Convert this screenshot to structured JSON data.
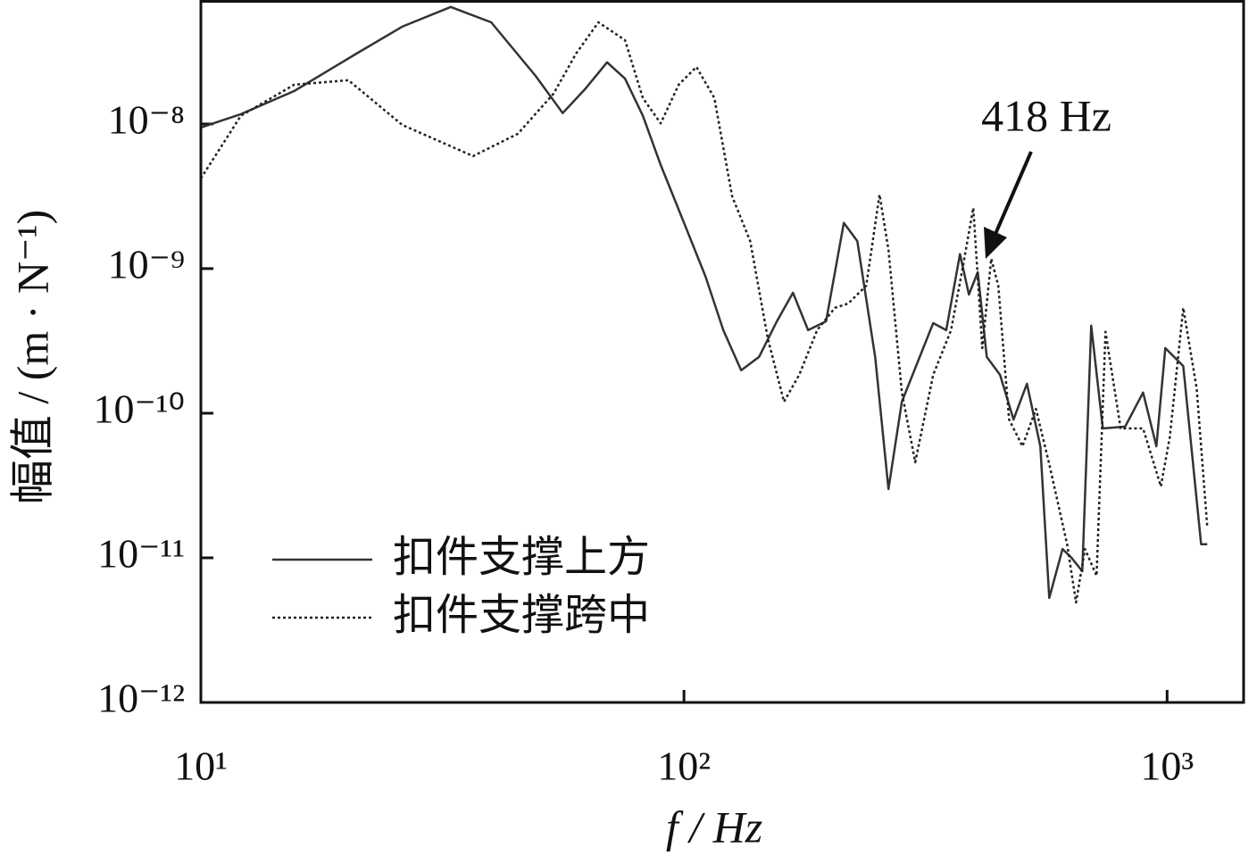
{
  "chart_data": {
    "type": "line",
    "xlabel": "f / Hz",
    "ylabel": "幅值 / (m · N⁻¹)",
    "xscale": "log",
    "yscale": "log",
    "xlim": [
      10,
      1440
    ],
    "ylim": [
      1e-12,
      7.2e-08
    ],
    "xticks": [
      {
        "value": 10,
        "label": "10¹"
      },
      {
        "value": 100,
        "label": "10²"
      },
      {
        "value": 1000,
        "label": "10³"
      }
    ],
    "yticks": [
      {
        "value": 1e-12,
        "label": "10⁻¹²"
      },
      {
        "value": 1e-11,
        "label": "10⁻¹¹"
      },
      {
        "value": 1e-10,
        "label": "10⁻¹⁰"
      },
      {
        "value": 1e-09,
        "label": "10⁻⁹"
      },
      {
        "value": 1e-08,
        "label": "10⁻⁸"
      }
    ],
    "legend": "lower left",
    "annotation": "418 Hz",
    "series": [
      {
        "name": "扣件支撑上方",
        "color": "#333333",
        "linestyle": "solid",
        "x": [
          10,
          12.1,
          15.6,
          21.0,
          26.1,
          32.9,
          39.9,
          49.3,
          56.1,
          62.4,
          69.3,
          75.5,
          82.2,
          89.5,
          100,
          110.8,
          120.6,
          131.3,
          143,
          155.7,
          168.1,
          180.7,
          196.8,
          214.2,
          228.4,
          248.7,
          265,
          282.5,
          307.6,
          328,
          349,
          372.6,
          388.8,
          405.6,
          423.4,
          451,
          481,
          512.7,
          546.5,
          570.3,
          607.7,
          634.3,
          667.5,
          696.5,
          736,
          818.8,
          891.8,
          950.2,
          991.5,
          1080,
          1176,
          1211
        ],
        "values": [
          9.45e-09,
          1.17e-08,
          1.69e-08,
          3.07e-08,
          4.71e-08,
          6.44e-08,
          5.05e-08,
          2.15e-08,
          1.19e-08,
          1.74e-08,
          2.67e-08,
          2.06e-08,
          1.14e-08,
          5.2e-09,
          2.07e-09,
          8.8e-10,
          3.75e-10,
          1.98e-10,
          2.45e-10,
          4.32e-10,
          6.81e-10,
          3.75e-10,
          4.32e-10,
          2.07e-09,
          1.55e-09,
          2.45e-10,
          2.99e-11,
          1.2e-10,
          2.45e-10,
          4.2e-10,
          3.75e-10,
          1.26e-09,
          6.62e-10,
          9.45e-10,
          2.45e-10,
          1.84e-10,
          9.05e-11,
          1.6e-10,
          5.91e-11,
          5.28e-12,
          1.15e-11,
          1e-11,
          8.08e-12,
          4.03e-10,
          7.85e-11,
          8.08e-11,
          1.39e-10,
          5.91e-11,
          2.82e-10,
          2.12e-10,
          1.24e-11,
          1.24e-11
        ]
      },
      {
        "name": "扣件支撑跨中",
        "color": "#222222",
        "linestyle": "dotted",
        "x": [
          10,
          12.1,
          15.6,
          20.2,
          26.1,
          36.6,
          45.3,
          53.7,
          59.8,
          66.5,
          75.5,
          82.2,
          89.5,
          97.5,
          106.1,
          115.6,
          125.8,
          137.1,
          149.2,
          161.1,
          173.2,
          188.6,
          205.3,
          218.8,
          238.4,
          254.0,
          265,
          282.5,
          301.1,
          328,
          357.1,
          377.4,
          397.1,
          414.5,
          432.5,
          447.3,
          470.8,
          501.9,
          535.2,
          570.3,
          620.9,
          647.9,
          676.1,
          714.5,
          745.6,
          801.6,
          891.8,
          970.7,
          1013,
          1080,
          1151,
          1211
        ],
        "values": [
          4.2e-09,
          1.14e-08,
          1.87e-08,
          2.01e-08,
          9.86e-09,
          6e-09,
          8.55e-09,
          1.62e-08,
          3.07e-08,
          5.05e-08,
          3.8e-08,
          1.51e-08,
          1.01e-08,
          1.87e-08,
          2.48e-08,
          1.51e-08,
          3.16e-09,
          1.55e-09,
          3.25e-10,
          1.2e-10,
          1.84e-10,
          3.75e-10,
          5.35e-10,
          5.74e-10,
          7.63e-10,
          3.25e-09,
          1.35e-09,
          1.39e-10,
          4.58e-11,
          1.84e-10,
          3.75e-10,
          1.01e-09,
          2.63e-09,
          2.82e-10,
          1.17e-09,
          7.63e-10,
          9.05e-11,
          5.91e-11,
          1.07e-10,
          4.45e-11,
          1.24e-11,
          4.91e-12,
          1.15e-11,
          7.52e-12,
          3.65e-10,
          7.85e-11,
          7.85e-11,
          3.12e-11,
          6.81e-11,
          5.35e-10,
          1.49e-10,
          1.64e-11
        ]
      }
    ]
  }
}
